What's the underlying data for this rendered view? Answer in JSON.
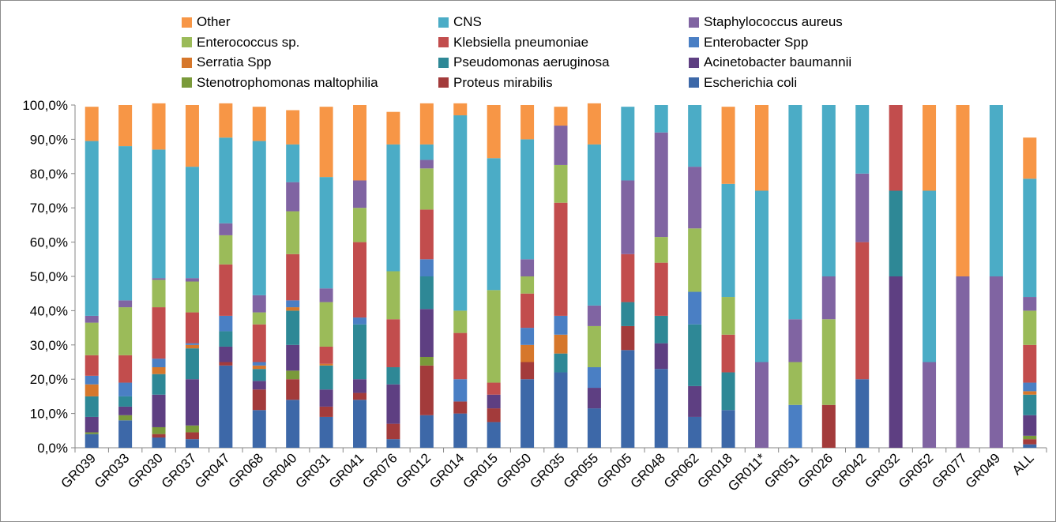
{
  "chart_data": {
    "type": "bar",
    "stacked": true,
    "percent": true,
    "ylim": [
      0,
      100
    ],
    "y_ticks": [
      "0,0%",
      "10,0%",
      "20,0%",
      "30,0%",
      "40,0%",
      "50,0%",
      "60,0%",
      "70,0%",
      "80,0%",
      "90,0%",
      "100,0%"
    ],
    "legend_placement": "top",
    "categories": [
      "GR039",
      "GR033",
      "GR030",
      "GR037",
      "GR047",
      "GR068",
      "GR040",
      "GR031",
      "GR041",
      "GR076",
      "GR012",
      "GR014",
      "GR015",
      "GR050",
      "GR035",
      "GR055",
      "GR005",
      "GR048",
      "GR062",
      "GR018",
      "GR011*",
      "GR051",
      "GR026",
      "GR042",
      "GR032",
      "GR052",
      "GR077",
      "GR049",
      "ALL"
    ],
    "series": [
      {
        "name": "Escherichia coli",
        "color": "#3d68a8",
        "values": [
          4,
          8,
          3,
          2.5,
          24,
          11,
          14,
          9,
          14,
          2.5,
          9.5,
          10,
          7.5,
          20,
          22,
          11.5,
          28.5,
          23,
          9,
          11,
          0,
          0,
          0,
          20,
          0,
          0,
          0,
          0,
          1
        ]
      },
      {
        "name": "Proteus mirabilis",
        "color": "#a33b3b",
        "values": [
          0,
          0,
          1,
          2,
          1,
          6,
          6,
          3,
          2,
          4.5,
          14.5,
          3.5,
          4,
          5,
          0,
          0,
          7,
          0,
          0,
          0,
          0,
          0,
          12.5,
          0,
          0,
          0,
          0,
          0,
          1.5
        ]
      },
      {
        "name": "Stenotrophomonas maltophilia",
        "color": "#7a9a3a",
        "values": [
          0.5,
          1.5,
          2,
          2,
          0,
          0,
          2.5,
          0,
          0,
          0,
          2.5,
          0,
          0,
          0,
          0,
          0,
          0,
          0,
          0,
          0,
          0,
          0,
          0,
          0,
          0,
          0,
          0,
          0,
          1
        ]
      },
      {
        "name": "Acinetobacter baumannii",
        "color": "#5e3f82",
        "values": [
          4.5,
          2.5,
          9.5,
          13.5,
          4.5,
          2.5,
          7.5,
          5,
          4,
          11.5,
          14,
          0,
          4,
          0,
          0,
          6,
          0,
          7.5,
          9,
          0,
          0,
          0,
          0,
          0,
          50,
          0,
          0,
          0,
          6
        ]
      },
      {
        "name": "Pseudomonas aeruginosa",
        "color": "#2e8896",
        "values": [
          6,
          3,
          6,
          9,
          4.5,
          3.5,
          10,
          7,
          16,
          5,
          9.5,
          0,
          0,
          0,
          5.5,
          0,
          7,
          8,
          18,
          11,
          0,
          0,
          0,
          0,
          25,
          0,
          0,
          0,
          6
        ]
      },
      {
        "name": "Serratia Spp",
        "color": "#d6772b",
        "values": [
          3.5,
          0,
          2,
          1,
          0,
          1,
          1,
          0.5,
          0,
          0,
          0,
          0,
          0,
          5,
          5.5,
          0,
          0,
          0,
          0,
          0,
          0,
          0,
          0,
          0,
          0,
          0,
          0,
          0,
          1
        ]
      },
      {
        "name": "Enterobacter Spp",
        "color": "#4a7fc4",
        "values": [
          2.5,
          4,
          2.5,
          0.5,
          4.5,
          1,
          2,
          0,
          2,
          0,
          5,
          6.5,
          0,
          5,
          5.5,
          6,
          0,
          0,
          9.5,
          0,
          0,
          12.5,
          0,
          0,
          0,
          0,
          0,
          0,
          2.5
        ]
      },
      {
        "name": "Klebsiella pneumoniae",
        "color": "#c24d4d",
        "values": [
          6,
          8,
          15,
          9,
          15,
          11,
          13.5,
          5,
          22,
          14,
          14.5,
          13.5,
          3.5,
          10,
          33,
          0,
          14,
          15.5,
          0,
          11,
          0,
          0,
          0,
          40,
          25,
          0,
          0,
          0,
          11
        ]
      },
      {
        "name": "Enterococcus sp.",
        "color": "#9bbb59",
        "values": [
          9.5,
          14,
          8,
          9,
          8.5,
          3.5,
          12.5,
          13,
          10,
          14,
          12,
          6.5,
          27,
          5,
          11,
          12,
          0,
          7.5,
          18.5,
          11,
          0,
          12.5,
          25,
          0,
          0,
          0,
          0,
          0,
          10
        ]
      },
      {
        "name": "Staphylococcus aureus",
        "color": "#8064a2",
        "values": [
          2,
          2,
          0.5,
          1,
          3.5,
          5,
          8.5,
          4,
          8,
          0,
          2.5,
          0,
          0,
          5,
          11.5,
          6,
          21.5,
          30.5,
          18,
          0,
          25,
          12.5,
          12.5,
          20,
          0,
          25,
          50,
          50,
          4
        ]
      },
      {
        "name": "CNS",
        "color": "#4bacc6",
        "values": [
          51,
          45,
          37.5,
          32.5,
          25,
          45,
          11,
          32.5,
          0,
          37,
          4.5,
          57,
          38.5,
          35,
          0,
          47,
          21.5,
          8,
          18,
          33,
          50,
          62.5,
          50,
          20,
          0,
          50,
          0,
          50,
          34.5
        ]
      },
      {
        "name": "Other",
        "color": "#f79646",
        "values": [
          10,
          12,
          13.5,
          18,
          10,
          10,
          10,
          20.5,
          22,
          9.5,
          12,
          3.5,
          15.5,
          10,
          5.5,
          12,
          0,
          0,
          0,
          22.5,
          25,
          0,
          0,
          0,
          0,
          25,
          50,
          0,
          12
        ]
      }
    ]
  },
  "legend_layout_order": [
    "Other",
    "CNS",
    "Staphylococcus aureus",
    "Enterococcus sp.",
    "Klebsiella pneumoniae",
    "Enterobacter Spp",
    "Serratia Spp",
    "Pseudomonas aeruginosa",
    "Acinetobacter baumannii",
    "Stenotrophomonas maltophilia",
    "Proteus mirabilis",
    "Escherichia coli"
  ]
}
